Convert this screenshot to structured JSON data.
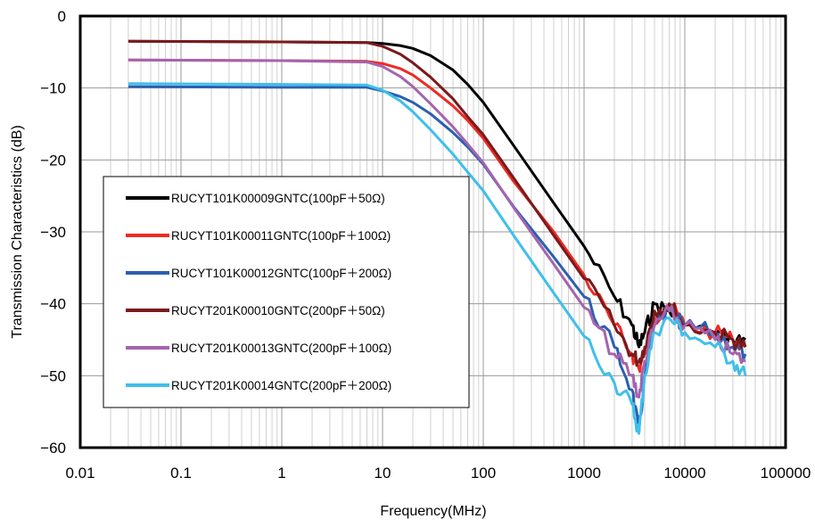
{
  "chart_data": {
    "type": "line",
    "xlabel": "Frequency(MHz)",
    "ylabel": "Transmission Characteristics (dB)",
    "x_scale": "log",
    "xlim": [
      0.01,
      100000
    ],
    "ylim": [
      -60,
      0
    ],
    "x_ticks": [
      "0.01",
      "0.1",
      "1",
      "10",
      "100",
      "1000",
      "10000",
      "100000"
    ],
    "y_ticks": [
      "0",
      "−10",
      "−20",
      "−30",
      "−40",
      "−50",
      "−60"
    ],
    "grid": true,
    "legend_position": "left-middle",
    "series": [
      {
        "name": "RUCYT101K00009GNTC(100pF＋50Ω)",
        "color": "#000000",
        "x": [
          0.03,
          1,
          7,
          10,
          15,
          20,
          30,
          50,
          70,
          100,
          200,
          500,
          1000,
          2000,
          3000,
          3500,
          4000,
          5000,
          7000,
          10000,
          20000,
          30000,
          40000
        ],
        "y": [
          -3.5,
          -3.6,
          -3.7,
          -3.8,
          -4.1,
          -4.5,
          -5.5,
          -7.5,
          -9.5,
          -12,
          -18,
          -26,
          -32,
          -39,
          -43,
          -46,
          -44,
          -40,
          -41,
          -43,
          -44,
          -45,
          -45
        ]
      },
      {
        "name": "RUCYT101K00011GNTC(100pF＋100Ω)",
        "color": "#ee2a24",
        "x": [
          0.03,
          1,
          7,
          10,
          15,
          20,
          30,
          50,
          70,
          100,
          200,
          500,
          1000,
          2000,
          3000,
          3500,
          4000,
          5000,
          7000,
          10000,
          20000,
          30000,
          40000
        ],
        "y": [
          -6.1,
          -6.2,
          -6.3,
          -6.6,
          -7.3,
          -8.2,
          -10,
          -12.5,
          -14.5,
          -17,
          -23,
          -30,
          -36,
          -43,
          -47,
          -49,
          -47,
          -42,
          -40,
          -43,
          -44,
          -45,
          -46
        ]
      },
      {
        "name": "RUCYT101K00012GNTC(100pF＋200Ω)",
        "color": "#2b5fb0",
        "x": [
          0.03,
          1,
          7,
          10,
          15,
          20,
          30,
          50,
          70,
          100,
          200,
          500,
          1000,
          2000,
          3000,
          3500,
          4000,
          5000,
          7000,
          10000,
          20000,
          30000,
          40000
        ],
        "y": [
          -9.8,
          -9.9,
          -9.9,
          -10.4,
          -11.2,
          -12,
          -13.6,
          -16.2,
          -18.2,
          -20.6,
          -26.5,
          -33.5,
          -39,
          -46,
          -52,
          -58,
          -50,
          -43,
          -41,
          -43,
          -44,
          -46,
          -47
        ]
      },
      {
        "name": "RUCYT201K00010GNTC(200pF＋50Ω)",
        "color": "#7a1a1c",
        "x": [
          0.03,
          1,
          7,
          10,
          15,
          20,
          30,
          50,
          70,
          100,
          200,
          500,
          1000,
          2000,
          3000,
          3500,
          4000,
          5000,
          7000,
          10000,
          20000,
          30000,
          40000
        ],
        "y": [
          -3.5,
          -3.6,
          -3.7,
          -4.2,
          -5.3,
          -6.5,
          -8.5,
          -11.5,
          -14,
          -16.5,
          -22.5,
          -30.5,
          -36.5,
          -43,
          -47,
          -48,
          -46,
          -41,
          -40,
          -43,
          -44,
          -45,
          -46
        ]
      },
      {
        "name": "RUCYT201K00013GNTC(200pF＋100Ω)",
        "color": "#a464ae",
        "x": [
          0.03,
          1,
          7,
          10,
          15,
          20,
          30,
          50,
          70,
          100,
          200,
          500,
          1000,
          2000,
          3000,
          3500,
          4000,
          5000,
          7000,
          10000,
          20000,
          30000,
          40000
        ],
        "y": [
          -6.1,
          -6.2,
          -6.4,
          -7,
          -8.4,
          -9.8,
          -12.2,
          -15.4,
          -17.8,
          -20.4,
          -26.6,
          -34.5,
          -40.5,
          -47,
          -50,
          -53,
          -48,
          -43,
          -41,
          -43,
          -45,
          -47,
          -48
        ]
      },
      {
        "name": "RUCYT201K00014GNTC(200pF＋200Ω)",
        "color": "#3fbfeb",
        "x": [
          0.03,
          1,
          7,
          10,
          15,
          20,
          30,
          50,
          70,
          100,
          200,
          500,
          1000,
          2000,
          3000,
          3500,
          4000,
          5000,
          7000,
          10000,
          20000,
          30000,
          40000
        ],
        "y": [
          -9.4,
          -9.5,
          -9.6,
          -10.3,
          -11.8,
          -13.3,
          -15.8,
          -19.2,
          -21.7,
          -24.3,
          -30.5,
          -38.5,
          -44.5,
          -51,
          -54,
          -58,
          -50,
          -44,
          -42,
          -44,
          -46,
          -48,
          -50
        ]
      }
    ]
  }
}
